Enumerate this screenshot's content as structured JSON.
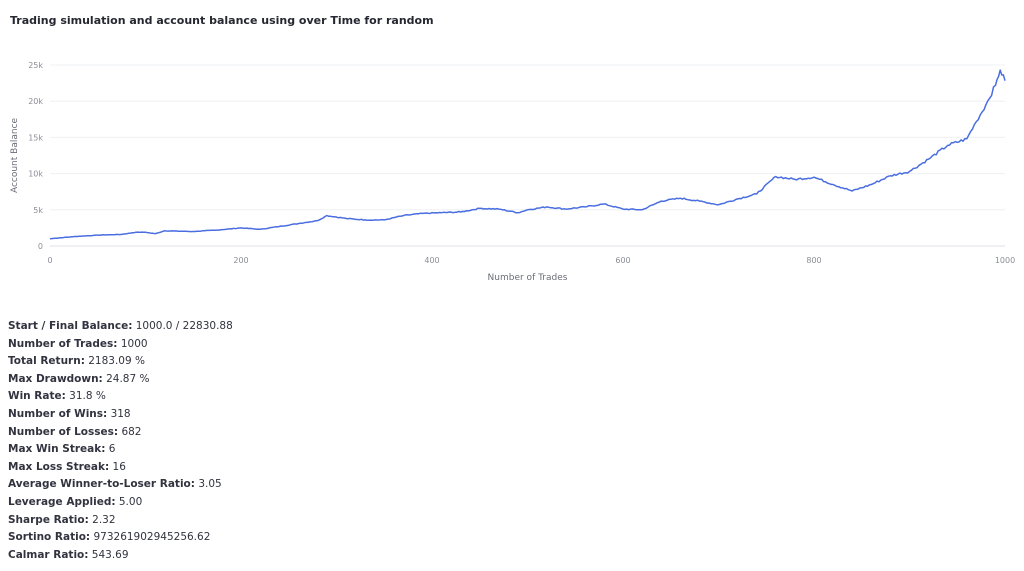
{
  "chart_data": {
    "type": "line",
    "title": "Trading simulation and account balance using over Time for random",
    "xlabel": "Number of Trades",
    "ylabel": "Account Balance",
    "xlim": [
      0,
      1000
    ],
    "ylim": [
      0,
      25000
    ],
    "x_ticks": [
      0,
      200,
      400,
      600,
      800,
      1000
    ],
    "y_ticks": [
      0,
      5000,
      10000,
      15000,
      20000,
      25000
    ],
    "y_tick_labels": [
      "0",
      "5k",
      "10k",
      "15k",
      "20k",
      "25k"
    ],
    "grid": true,
    "line_color": "#4a6ee0",
    "series": [
      {
        "x": [
          0,
          25,
          50,
          75,
          90,
          100,
          110,
          120,
          150,
          175,
          200,
          220,
          240,
          260,
          280,
          290,
          310,
          330,
          350,
          370,
          390,
          410,
          430,
          450,
          470,
          490,
          500,
          520,
          540,
          560,
          580,
          600,
          620,
          640,
          660,
          680,
          700,
          720,
          740,
          760,
          780,
          800,
          820,
          840,
          860,
          880,
          900,
          920,
          940,
          960,
          970,
          980,
          990,
          995,
          1000
        ],
        "y": [
          1000,
          1300,
          1500,
          1600,
          1900,
          1900,
          1700,
          2100,
          2000,
          2200,
          2500,
          2300,
          2700,
          3100,
          3500,
          4200,
          3800,
          3600,
          3600,
          4200,
          4500,
          4600,
          4700,
          5200,
          5100,
          4600,
          5000,
          5400,
          5100,
          5400,
          5800,
          5100,
          5000,
          6200,
          6600,
          6200,
          5700,
          6500,
          7200,
          9600,
          9200,
          9500,
          8500,
          7600,
          8500,
          9700,
          10300,
          12000,
          13900,
          14800,
          17200,
          19500,
          22200,
          24300,
          22830
        ]
      }
    ]
  },
  "stats": [
    {
      "label": "Start / Final Balance:",
      "value": "1000.0 / 22830.88"
    },
    {
      "label": "Number of Trades:",
      "value": "1000"
    },
    {
      "label": "Total Return:",
      "value": "2183.09 %"
    },
    {
      "label": "Max Drawdown:",
      "value": "24.87 %"
    },
    {
      "label": "Win Rate:",
      "value": "31.8 %"
    },
    {
      "label": "Number of Wins:",
      "value": "318"
    },
    {
      "label": "Number of Losses:",
      "value": "682"
    },
    {
      "label": "Max Win Streak:",
      "value": "6"
    },
    {
      "label": "Max Loss Streak:",
      "value": "16"
    },
    {
      "label": "Average Winner-to-Loser Ratio:",
      "value": "3.05"
    },
    {
      "label": "Leverage Applied:",
      "value": "5.00"
    },
    {
      "label": "Sharpe Ratio:",
      "value": "2.32"
    },
    {
      "label": "Sortino Ratio:",
      "value": "973261902945256.62"
    },
    {
      "label": "Calmar Ratio:",
      "value": "543.69"
    }
  ]
}
